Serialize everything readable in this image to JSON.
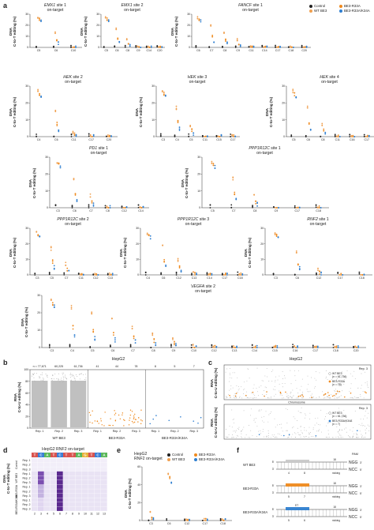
{
  "panels": {
    "a": "a",
    "b": "b",
    "c": "c",
    "d": "d",
    "e": "e",
    "f": "f"
  },
  "colors": {
    "control": "#222222",
    "wt": "#f0a050",
    "r33a": "#ef8a1e",
    "r33a_k34a": "#2f7fd0",
    "rna_grey": "#b5b5b5",
    "heat_high": "#5b2a8f",
    "heat_low": "#e9e3f4",
    "protospacer_box": "#c8c8c8"
  },
  "legend_a": {
    "items": [
      {
        "label": "Control",
        "color": "#222222"
      },
      {
        "label": "WT BE3",
        "color": "#f0a050"
      },
      {
        "label": "BE3-R33A",
        "color": "#ef8a1e"
      },
      {
        "label": "BE3-R33A/K34A",
        "color": "#2f7fd0"
      }
    ]
  },
  "a_ylabel": [
    "DNA",
    "C-to-T editing (%)"
  ],
  "a_subtitle": "on-target",
  "a_ytick_labels": [
    "0",
    "10",
    "20",
    "30"
  ],
  "a_plots": [
    {
      "gene": "EMX1",
      "suffix": "site 1",
      "x": [
        "C5",
        "C6",
        "C10"
      ]
    },
    {
      "gene": "EMX1",
      "suffix": "site 2",
      "x": [
        "C5",
        "C6",
        "C8",
        "C9",
        "C14",
        "C20"
      ]
    },
    {
      "gene": "FANCF",
      "suffix": "site 1",
      "x": [
        "C6",
        "C7",
        "C8",
        "C9",
        "C11",
        "C14",
        "C17",
        "C18",
        "C20"
      ]
    },
    {
      "gene": "HEK",
      "suffix": "site 2",
      "x": [
        "C4",
        "C6",
        "C11",
        "C17",
        "C20"
      ]
    },
    {
      "gene": "HEK",
      "suffix": "site 3",
      "x": [
        "C3",
        "C4",
        "C5",
        "C11",
        "C15",
        "C17"
      ]
    },
    {
      "gene": "HEK",
      "suffix": "site 4",
      "x": [
        "C5",
        "C6",
        "C8",
        "C11",
        "C16",
        "C17"
      ]
    },
    {
      "gene": "PD1",
      "suffix": "site 1",
      "x": [
        "C3",
        "C6",
        "C7",
        "C8",
        "C12",
        "C14"
      ]
    },
    {
      "gene": "PPP1R12C",
      "suffix": "site 1",
      "x": [
        "C5",
        "C7",
        "C8",
        "C9",
        "C17",
        "C18"
      ]
    },
    {
      "gene": "PPP1R12C",
      "suffix": "site 2",
      "x": [
        "C3",
        "C5",
        "C7",
        "C11",
        "C12",
        "C13"
      ]
    },
    {
      "gene": "PPP1R12C",
      "suffix": "site 3",
      "x": [
        "C4",
        "C6",
        "C12",
        "C13",
        "C14",
        "C17",
        "C18"
      ]
    },
    {
      "gene": "RNF2",
      "suffix": "site 1",
      "x": [
        "C3",
        "C6",
        "C12",
        "C17",
        "C18"
      ]
    },
    {
      "gene": "VEGFA",
      "suffix": "site 2",
      "x": [
        "C3",
        "C4",
        "C5",
        "C6",
        "C7",
        "C8",
        "C9",
        "C10",
        "C12",
        "C13",
        "C14",
        "C15",
        "C16",
        "C17",
        "C18",
        "C20"
      ]
    }
  ],
  "chart_data": [
    {
      "type": "scatter",
      "panel": "b",
      "title": "HepG2",
      "ylabel": [
        "RNA",
        "C-to-U editing (%)"
      ],
      "ytick_labels": [
        "0",
        "20",
        "40",
        "60",
        "80",
        "100"
      ],
      "counts": [
        "n = 77,671",
        "60,225",
        "61,736",
        "41",
        "44",
        "78",
        "8",
        "5",
        "7"
      ],
      "reps": [
        "Rep. 1",
        "Rep. 2",
        "Rep. 3",
        "Rep. 1",
        "Rep. 2",
        "Rep. 3",
        "Rep. 1",
        "Rep. 2",
        "Rep. 3"
      ],
      "groups": [
        "WT BE3",
        "BE3-R33A",
        "BE3-R33A/K34A"
      ]
    },
    {
      "type": "scatter",
      "panel": "c",
      "title": "HepG2",
      "xlabel": "Chromosome",
      "ylabel": [
        "RNA",
        "C-to-U editing (%)"
      ],
      "subplots": [
        {
          "rep": "Rep. 3",
          "legend": [
            {
              "label": "WT BE3",
              "n": "(n = 61,736)"
            },
            {
              "label": "BE3-R33A",
              "n": "(n = 78)"
            }
          ]
        },
        {
          "rep": "Rep. 3",
          "legend": [
            {
              "label": "WT BE3",
              "n": "(n = 61,736)"
            },
            {
              "label": "BE3-R33A/K34A",
              "n": "(n = 7)"
            }
          ]
        }
      ]
    },
    {
      "type": "heatmap",
      "panel": "d",
      "title": "HepG2 RNF2 on-target",
      "ylabel": [
        "DNA",
        "C-to-T editing (%)"
      ],
      "sequence": [
        "T",
        "C",
        "A",
        "T",
        "C",
        "T",
        "T",
        "A",
        "G",
        "T",
        "C",
        "A"
      ],
      "positions": [
        "2",
        "3",
        "4",
        "5",
        "6",
        "7",
        "8",
        "9",
        "10",
        "11",
        "12",
        "13"
      ],
      "rows": [
        "Rep. 1",
        "Rep. 2",
        "Rep. 3",
        "Rep. 1",
        "Rep. 2",
        "Rep. 3",
        "Rep. 1",
        "Rep. 2",
        "Rep. 3",
        "Rep. 1",
        "Rep. 2",
        "Rep. 3"
      ],
      "groups": [
        "Control",
        "WT BE3",
        "BE3-R33A",
        "BE3-R33A/K34A"
      ]
    },
    {
      "type": "scatter",
      "panel": "e",
      "title": [
        "HepG2",
        "RNF2 on-target"
      ],
      "ylabel": [
        "DNA",
        "C-to-T editing (%)"
      ],
      "ytick_labels": [
        "0",
        "20",
        "40",
        "60"
      ],
      "x": [
        "C3",
        "C6",
        "C12",
        "C17",
        "C18"
      ],
      "legend": [
        "Control",
        "WT BE3",
        "BE3-R33A",
        "BE3-R33A/K34A"
      ]
    }
  ],
  "panel_f": {
    "rows": [
      {
        "label": "WT BE3",
        "positions": [
          "4",
          "8"
        ],
        "pam_pos": "18"
      },
      {
        "label": "BE3-R33A",
        "positions": [
          "5",
          "7"
        ],
        "pam_pos": "18"
      },
      {
        "label": "BE3-R33A/K34A",
        "positions": [
          "5",
          "6"
        ],
        "pam_pos": "18"
      }
    ],
    "pam_label": "PAM",
    "ngg": "NGG",
    "ncc": "NCC",
    "nicking": "nicking",
    "five": "5'",
    "three": "3'",
    "st": "5'T"
  }
}
